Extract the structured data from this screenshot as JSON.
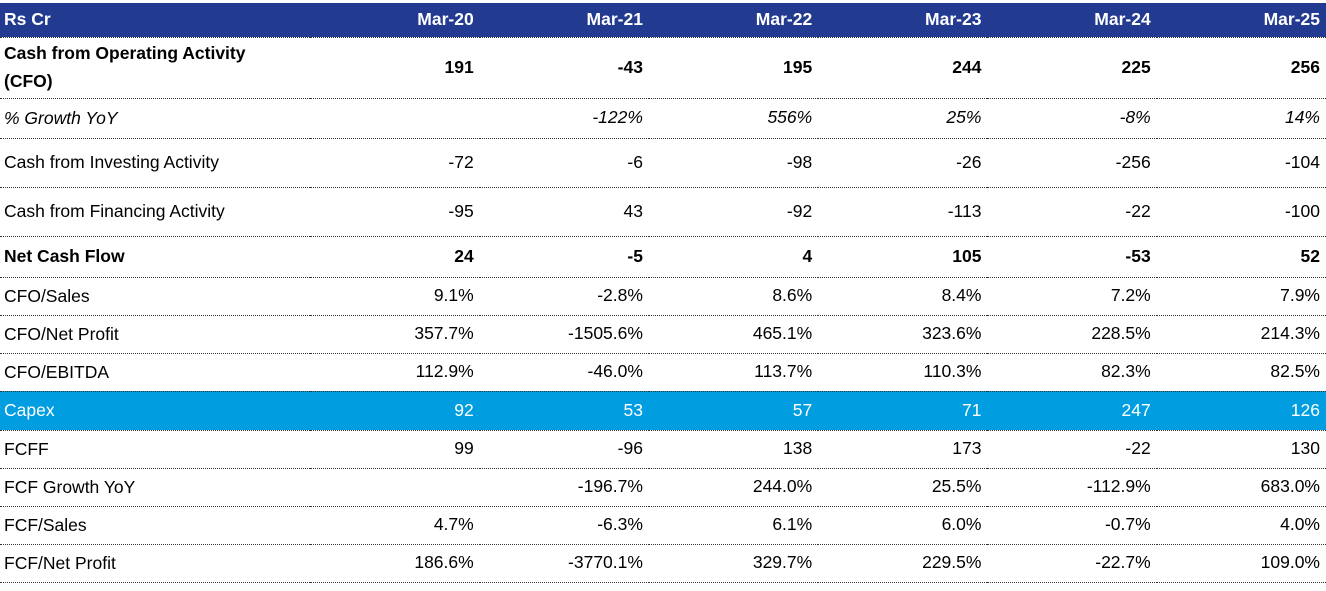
{
  "chart_data": {
    "type": "table",
    "unit_label": "Rs Cr",
    "columns": [
      "Mar-20",
      "Mar-21",
      "Mar-22",
      "Mar-23",
      "Mar-24",
      "Mar-25"
    ],
    "rows": [
      {
        "label": "Cash from Operating Activity (CFO)",
        "style": "bold",
        "values": [
          "191",
          "-43",
          "195",
          "244",
          "225",
          "256"
        ]
      },
      {
        "label": "% Growth YoY",
        "style": "italic",
        "values": [
          "",
          "-122%",
          "556%",
          "25%",
          "-8%",
          "14%"
        ]
      },
      {
        "label": "Cash from Investing Activity",
        "style": "regular",
        "values": [
          "-72",
          "-6",
          "-98",
          "-26",
          "-256",
          "-104"
        ]
      },
      {
        "label": "Cash from Financing Activity",
        "style": "regular",
        "values": [
          "-95",
          "43",
          "-92",
          "-113",
          "-22",
          "-100"
        ]
      },
      {
        "label": "Net Cash Flow",
        "style": "bold",
        "values": [
          "24",
          "-5",
          "4",
          "105",
          "-53",
          "52"
        ]
      },
      {
        "label": "CFO/Sales",
        "style": "regular",
        "values": [
          "9.1%",
          "-2.8%",
          "8.6%",
          "8.4%",
          "7.2%",
          "7.9%"
        ]
      },
      {
        "label": "CFO/Net Profit",
        "style": "regular",
        "values": [
          "357.7%",
          "-1505.6%",
          "465.1%",
          "323.6%",
          "228.5%",
          "214.3%"
        ]
      },
      {
        "label": "CFO/EBITDA",
        "style": "regular",
        "values": [
          "112.9%",
          "-46.0%",
          "113.7%",
          "110.3%",
          "82.3%",
          "82.5%"
        ]
      },
      {
        "label": "Capex",
        "style": "highlight",
        "values": [
          "92",
          "53",
          "57",
          "71",
          "247",
          "126"
        ]
      },
      {
        "label": "FCFF",
        "style": "regular",
        "values": [
          "99",
          "-96",
          "138",
          "173",
          "-22",
          "130"
        ]
      },
      {
        "label": "FCF Growth YoY",
        "style": "regular",
        "values": [
          "",
          "-196.7%",
          "244.0%",
          "25.5%",
          "-112.9%",
          "683.0%"
        ]
      },
      {
        "label": "FCF/Sales",
        "style": "regular",
        "values": [
          "4.7%",
          "-6.3%",
          "6.1%",
          "6.0%",
          "-0.7%",
          "4.0%"
        ]
      },
      {
        "label": "FCF/Net Profit",
        "style": "regular",
        "values": [
          "186.6%",
          "-3770.1%",
          "329.7%",
          "229.5%",
          "-22.7%",
          "109.0%"
        ]
      }
    ],
    "colors": {
      "header_bg": "#223A8F",
      "header_text": "#FFFFFF",
      "highlight_bg": "#009EE0",
      "highlight_text": "#FFFFFF",
      "body_text": "#000000",
      "divider": "#333333"
    }
  }
}
